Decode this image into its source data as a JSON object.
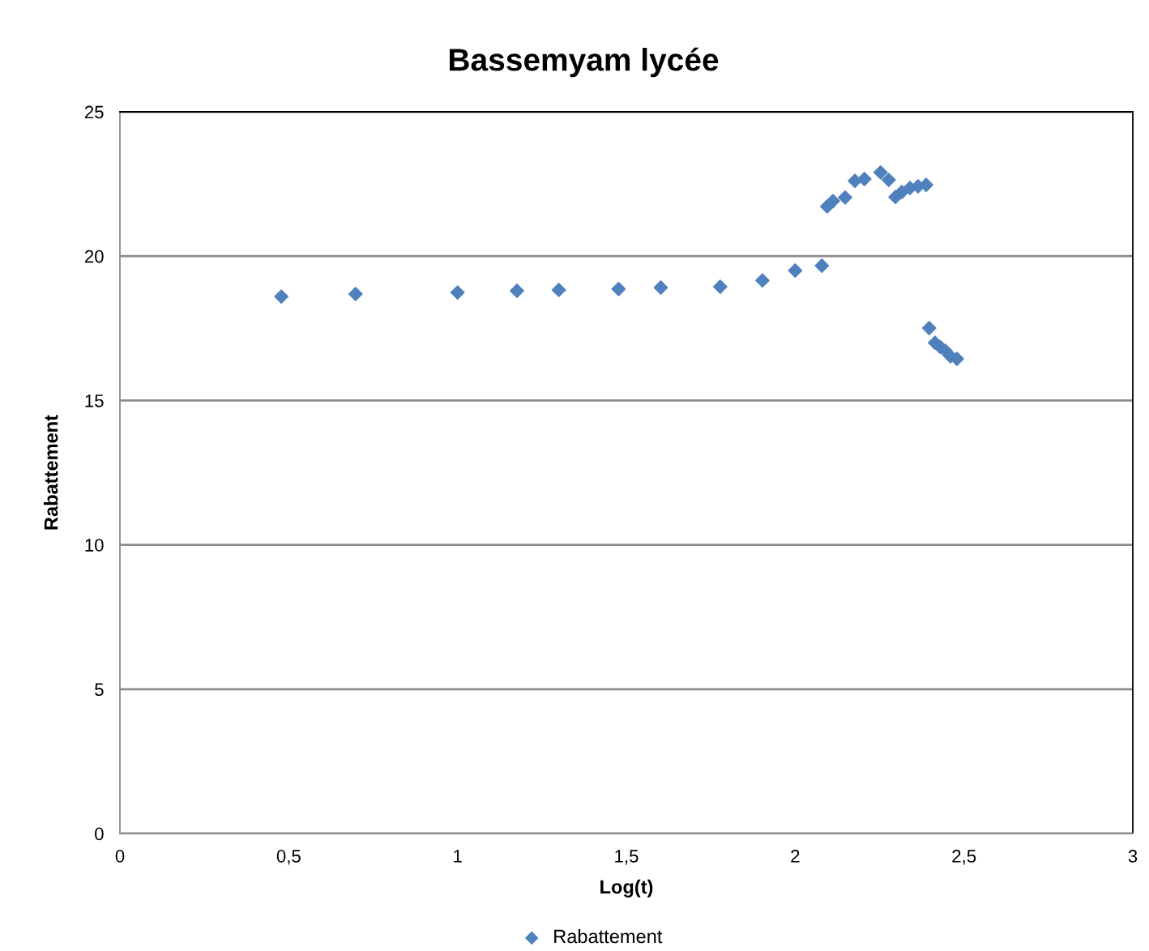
{
  "chart_data": {
    "type": "scatter",
    "title": "Bassemyam lycée",
    "xlabel": "Log(t)",
    "ylabel": "Rabattement",
    "x": [
      0.478,
      0.698,
      1.0,
      1.176,
      1.3,
      1.477,
      1.602,
      1.778,
      1.903,
      2.0,
      2.079,
      2.095,
      2.112,
      2.148,
      2.177,
      2.205,
      2.253,
      2.277,
      2.297,
      2.316,
      2.34,
      2.364,
      2.388,
      2.397,
      2.414,
      2.429,
      2.445,
      2.46,
      2.479
    ],
    "series": [
      {
        "name": "Rabattement",
        "color": "#4f81bd",
        "values": [
          18.6,
          18.69,
          18.74,
          18.8,
          18.83,
          18.86,
          18.91,
          18.94,
          19.16,
          19.5,
          19.67,
          21.72,
          21.91,
          22.03,
          22.61,
          22.67,
          22.9,
          22.64,
          22.05,
          22.22,
          22.36,
          22.42,
          22.47,
          17.51,
          17.0,
          16.86,
          16.72,
          16.53,
          16.44
        ]
      }
    ],
    "xlim": [
      0,
      3
    ],
    "xticks": [
      0,
      {
        "value": 0.5,
        "label": "0,5"
      },
      1,
      {
        "value": 1.5,
        "label": "1,5"
      },
      2,
      {
        "value": 2.5,
        "label": "2,5"
      },
      3
    ],
    "ylim": [
      0,
      25
    ],
    "yticks": [
      0,
      5,
      10,
      15,
      20,
      25
    ],
    "grid": "y",
    "legend": "bottom",
    "marker": "diamond"
  }
}
